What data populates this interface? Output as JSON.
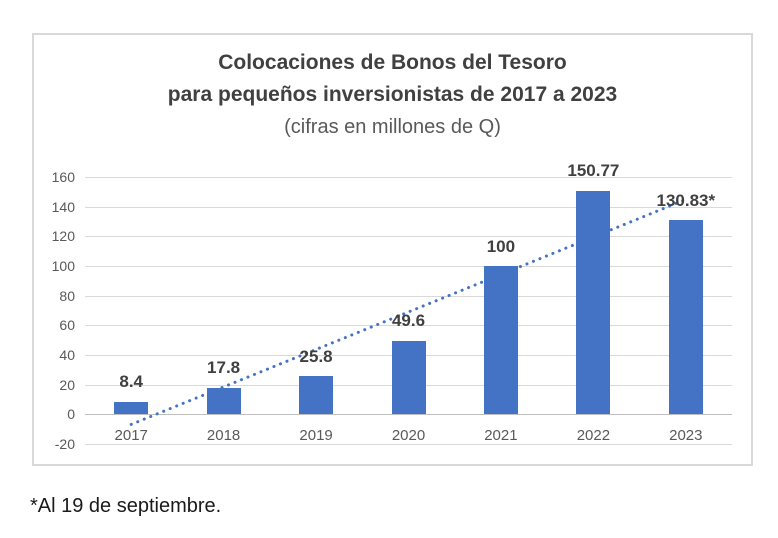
{
  "chart_data": {
    "type": "bar",
    "title_line1": "Colocaciones de Bonos del Tesoro",
    "title_line2": "para pequeños inversionistas de 2017 a 2023",
    "subtitle": "(cifras en millones de Q)",
    "categories": [
      "2017",
      "2018",
      "2019",
      "2020",
      "2021",
      "2022",
      "2023"
    ],
    "values": [
      8.4,
      17.8,
      25.8,
      49.6,
      100,
      150.77,
      130.83
    ],
    "data_labels": [
      "8.4",
      "17.8",
      "25.8",
      "49.6",
      "100",
      "150.77",
      "130.83*"
    ],
    "y_ticks": [
      160,
      140,
      120,
      100,
      80,
      60,
      40,
      20,
      0,
      -20
    ],
    "ylim": [
      -20,
      160
    ],
    "grid": true,
    "legend_position": "none",
    "bar_color": "#4472c4",
    "gridline_color": "#d9d9d9",
    "axis_line_color": "#bfbfbf",
    "axis_label_color": "#595959",
    "data_label_color": "#404040",
    "trendline": {
      "type": "linear",
      "style": "dotted",
      "color": "#4472c4",
      "start_value": -6.8,
      "end_value": 144.8
    },
    "footnote": "*Al 19 de septiembre."
  }
}
